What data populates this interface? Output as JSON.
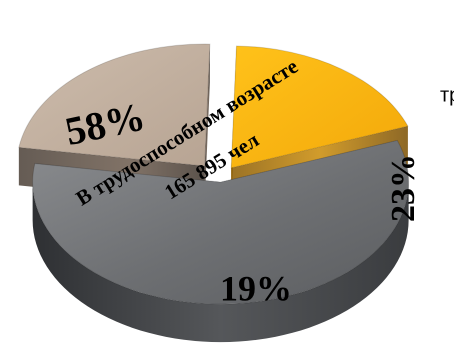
{
  "chart_data": {
    "type": "pie",
    "title": "",
    "slices": [
      {
        "label": "В трудоспособном возрасте",
        "value": 58,
        "value_label": "58%",
        "sub_label": "165 895 чел",
        "color": "#6f7174"
      },
      {
        "label": "тр",
        "value": 23,
        "value_label": "23%",
        "color": "#c4b2a2"
      },
      {
        "label": "",
        "value": 19,
        "value_label": "19%",
        "color": "#fbb414"
      }
    ],
    "units": "%",
    "legend": "none"
  }
}
